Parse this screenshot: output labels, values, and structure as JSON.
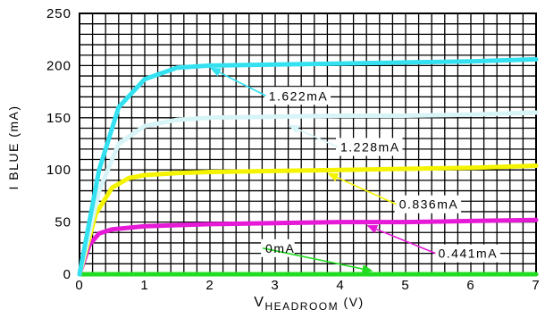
{
  "chart_data": {
    "type": "line",
    "xlabel": {
      "main": "V",
      "sub": "HEADROOM",
      "rest": " (V)"
    },
    "ylabel": "I BLUE (mA)",
    "xlim": [
      0,
      7
    ],
    "ylim": [
      0,
      250
    ],
    "x_ticks": [
      0,
      1,
      2,
      3,
      4,
      5,
      6,
      7
    ],
    "x_tick_labels": [
      "0",
      "1",
      "2",
      "3",
      "4",
      "5",
      "6",
      "7"
    ],
    "y_ticks": [
      0,
      50,
      100,
      150,
      200,
      250
    ],
    "y_tick_labels": [
      "0",
      "50",
      "100",
      "150",
      "200",
      "250"
    ],
    "grid": true,
    "series": [
      {
        "name": "1.622mA",
        "color": "#33e1f0",
        "points": [
          [
            0,
            0
          ],
          [
            0.3,
            100
          ],
          [
            0.6,
            160
          ],
          [
            1,
            187
          ],
          [
            1.5,
            198
          ],
          [
            2,
            200
          ],
          [
            3,
            201
          ],
          [
            4,
            202
          ],
          [
            5,
            203
          ],
          [
            6,
            204
          ],
          [
            7,
            206
          ]
        ]
      },
      {
        "name": "1.228mA",
        "color": "#d7f4f7",
        "points": [
          [
            0,
            0
          ],
          [
            0.3,
            80
          ],
          [
            0.6,
            125
          ],
          [
            1,
            142
          ],
          [
            1.5,
            148
          ],
          [
            2,
            150
          ],
          [
            3,
            151
          ],
          [
            4,
            152
          ],
          [
            5,
            152
          ],
          [
            6,
            153
          ],
          [
            7,
            155
          ]
        ]
      },
      {
        "name": "0.836mA",
        "color": "#f4f400",
        "points": [
          [
            0,
            0
          ],
          [
            0.25,
            58
          ],
          [
            0.5,
            83
          ],
          [
            0.75,
            92
          ],
          [
            1,
            95
          ],
          [
            1.5,
            97
          ],
          [
            2,
            98
          ],
          [
            3,
            99
          ],
          [
            4,
            100
          ],
          [
            5,
            101
          ],
          [
            6,
            102
          ],
          [
            7,
            104
          ]
        ]
      },
      {
        "name": "0.441mA",
        "color": "#e619d7",
        "points": [
          [
            0,
            0
          ],
          [
            0.15,
            28
          ],
          [
            0.3,
            39
          ],
          [
            0.5,
            43
          ],
          [
            1,
            46
          ],
          [
            2,
            48
          ],
          [
            3,
            49
          ],
          [
            4,
            50
          ],
          [
            5,
            50
          ],
          [
            6,
            51
          ],
          [
            7,
            52
          ]
        ]
      },
      {
        "name": "0mA",
        "color": "#22dc22",
        "points": [
          [
            0,
            0
          ],
          [
            7,
            0
          ]
        ]
      }
    ],
    "annotations": [
      {
        "text": "1.622mA",
        "series": 0,
        "label_xy": [
          2.9,
          171
        ],
        "arrow_to": [
          2.0,
          198
        ]
      },
      {
        "text": "1.228mA",
        "series": 1,
        "label_xy": [
          4.0,
          122
        ],
        "arrow_to": [
          3.2,
          143
        ]
      },
      {
        "text": "0.836mA",
        "series": 2,
        "label_xy": [
          4.9,
          67
        ],
        "arrow_to": [
          3.8,
          97
        ]
      },
      {
        "text": "0.441mA",
        "series": 3,
        "label_xy": [
          5.5,
          20
        ],
        "arrow_to": [
          4.4,
          47
        ]
      },
      {
        "text": "0mA",
        "series": 4,
        "label_xy": [
          2.85,
          25
        ],
        "arrow_to": [
          4.5,
          3
        ]
      }
    ]
  }
}
